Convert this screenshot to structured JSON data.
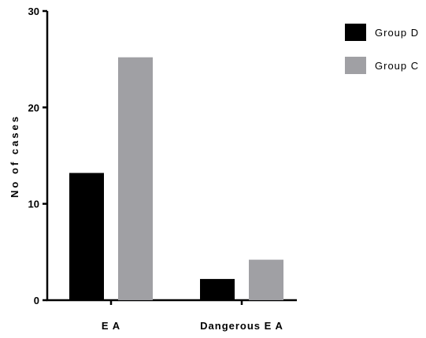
{
  "chart_data": {
    "type": "bar",
    "title": "",
    "xlabel": "",
    "ylabel": "No of cases",
    "ylim": [
      0,
      30
    ],
    "yticks": [
      0,
      10,
      20,
      30
    ],
    "categories": [
      "E A",
      "Dangerous E A"
    ],
    "series": [
      {
        "name": "Group D",
        "values": [
          13.2,
          2.2
        ],
        "color": "#000000"
      },
      {
        "name": "Group C",
        "values": [
          25.2,
          4.2
        ],
        "color": "#a0a0a4"
      }
    ],
    "legend_position": "top-right",
    "grid": false
  }
}
